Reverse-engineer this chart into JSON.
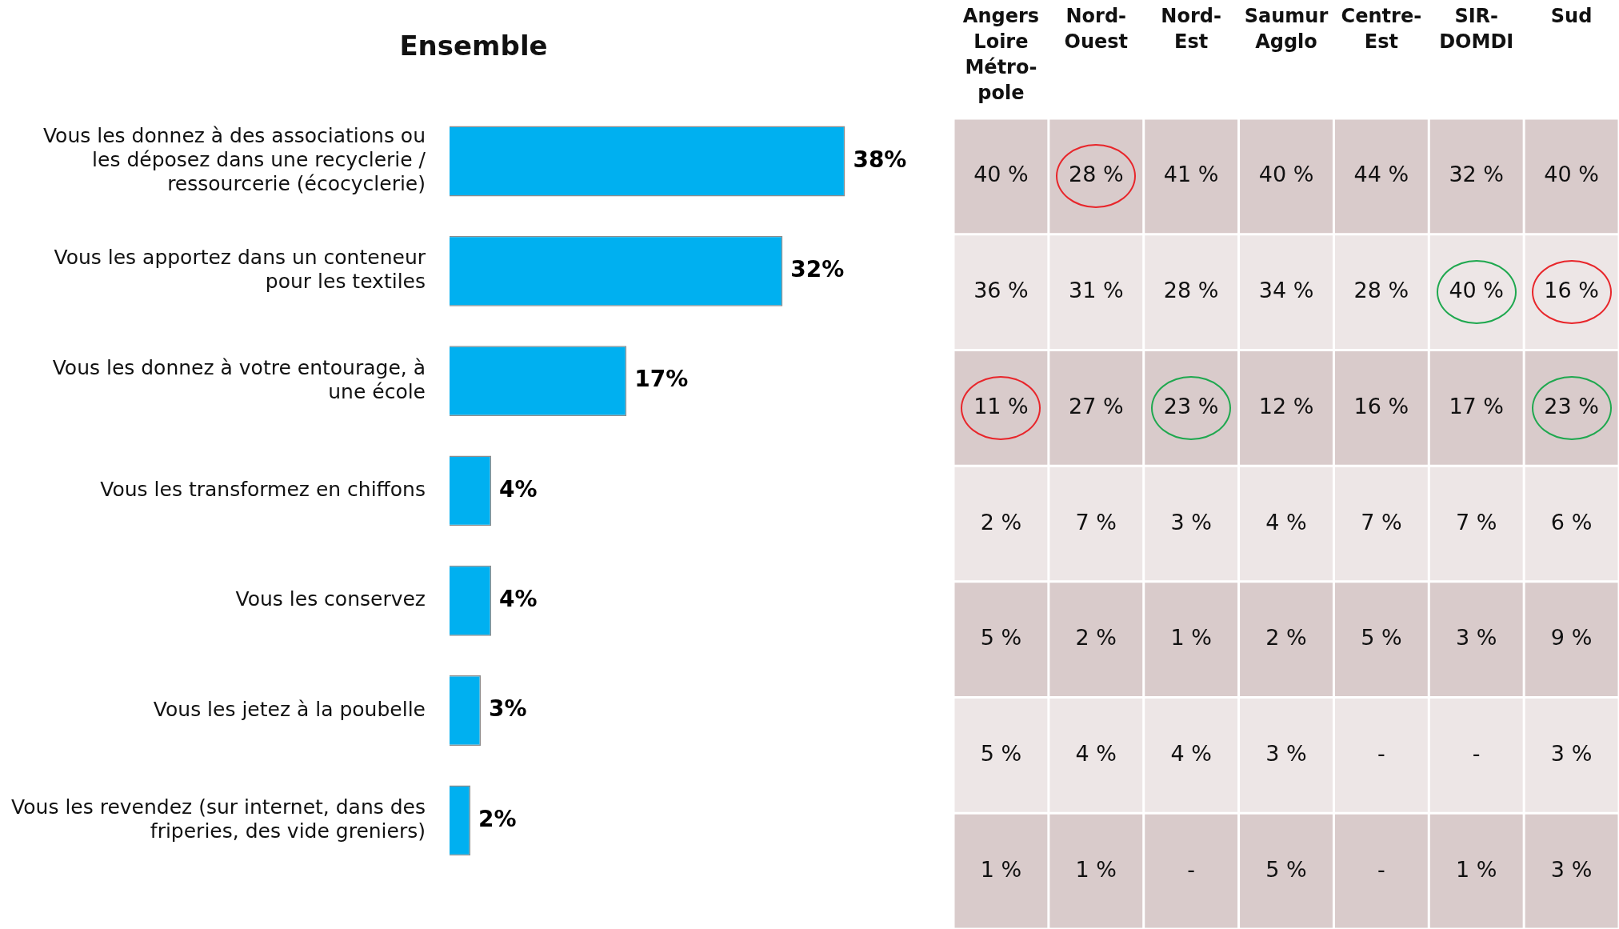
{
  "chart_data": [
    {
      "type": "bar",
      "title": "Ensemble",
      "orientation": "horizontal",
      "color": "#00b0f0",
      "categories": [
        "Vous les donnez à des associations ou les déposez dans une recyclerie / ressourcerie (écocyclerie)",
        "Vous les apportez dans un conteneur pour les textiles",
        "Vous les donnez à votre entourage, à une école",
        "Vous les transformez en chiffons",
        "Vous les conservez",
        "Vous les jetez à la poubelle",
        "Vous les revendez (sur internet, dans des friperies, des vide greniers)"
      ],
      "values": [
        38,
        32,
        17,
        4,
        4,
        3,
        2
      ],
      "value_labels": [
        "38%",
        "32%",
        "17%",
        "4%",
        "4%",
        "3%",
        "2%"
      ]
    },
    {
      "type": "heatmap",
      "categories": [
        "Angers Loire Métro-pole",
        "Nord-Ouest",
        "Nord-Est",
        "Saumur Agglo",
        "Centre-Est",
        "SIR-DOMDI",
        "Sud"
      ],
      "y_categories": [
        null,
        null,
        null,
        null,
        null,
        null,
        null
      ],
      "cells": [
        [
          40,
          28,
          41,
          40,
          44,
          32,
          40
        ],
        [
          36,
          31,
          28,
          34,
          28,
          40,
          16
        ],
        [
          11,
          27,
          23,
          12,
          16,
          17,
          23
        ],
        [
          2,
          7,
          3,
          4,
          7,
          7,
          6
        ],
        [
          5,
          2,
          1,
          2,
          5,
          3,
          9
        ],
        [
          5,
          4,
          4,
          3,
          null,
          null,
          3
        ],
        [
          1,
          1,
          null,
          5,
          null,
          1,
          3
        ]
      ],
      "cell_labels": [
        [
          "40 %",
          "28 %",
          "41 %",
          "40 %",
          "44 %",
          "32 %",
          "40 %"
        ],
        [
          "36 %",
          "31 %",
          "28 %",
          "34 %",
          "28 %",
          "40 %",
          "16 %"
        ],
        [
          "11 %",
          "27 %",
          "23 %",
          "12 %",
          "16 %",
          "17 %",
          "23 %"
        ],
        [
          "2 %",
          "7 %",
          "3 %",
          "4 %",
          "7 %",
          "7 %",
          "6 %"
        ],
        [
          "5 %",
          "2 %",
          "1 %",
          "2 %",
          "5 %",
          "3 %",
          "9 %"
        ],
        [
          "5 %",
          "4 %",
          "4 %",
          "3 %",
          "-",
          "-",
          "3 %"
        ],
        [
          "1 %",
          "1 %",
          "-",
          "5 %",
          "-",
          "1 %",
          "3 %"
        ]
      ]
    }
  ]
}
